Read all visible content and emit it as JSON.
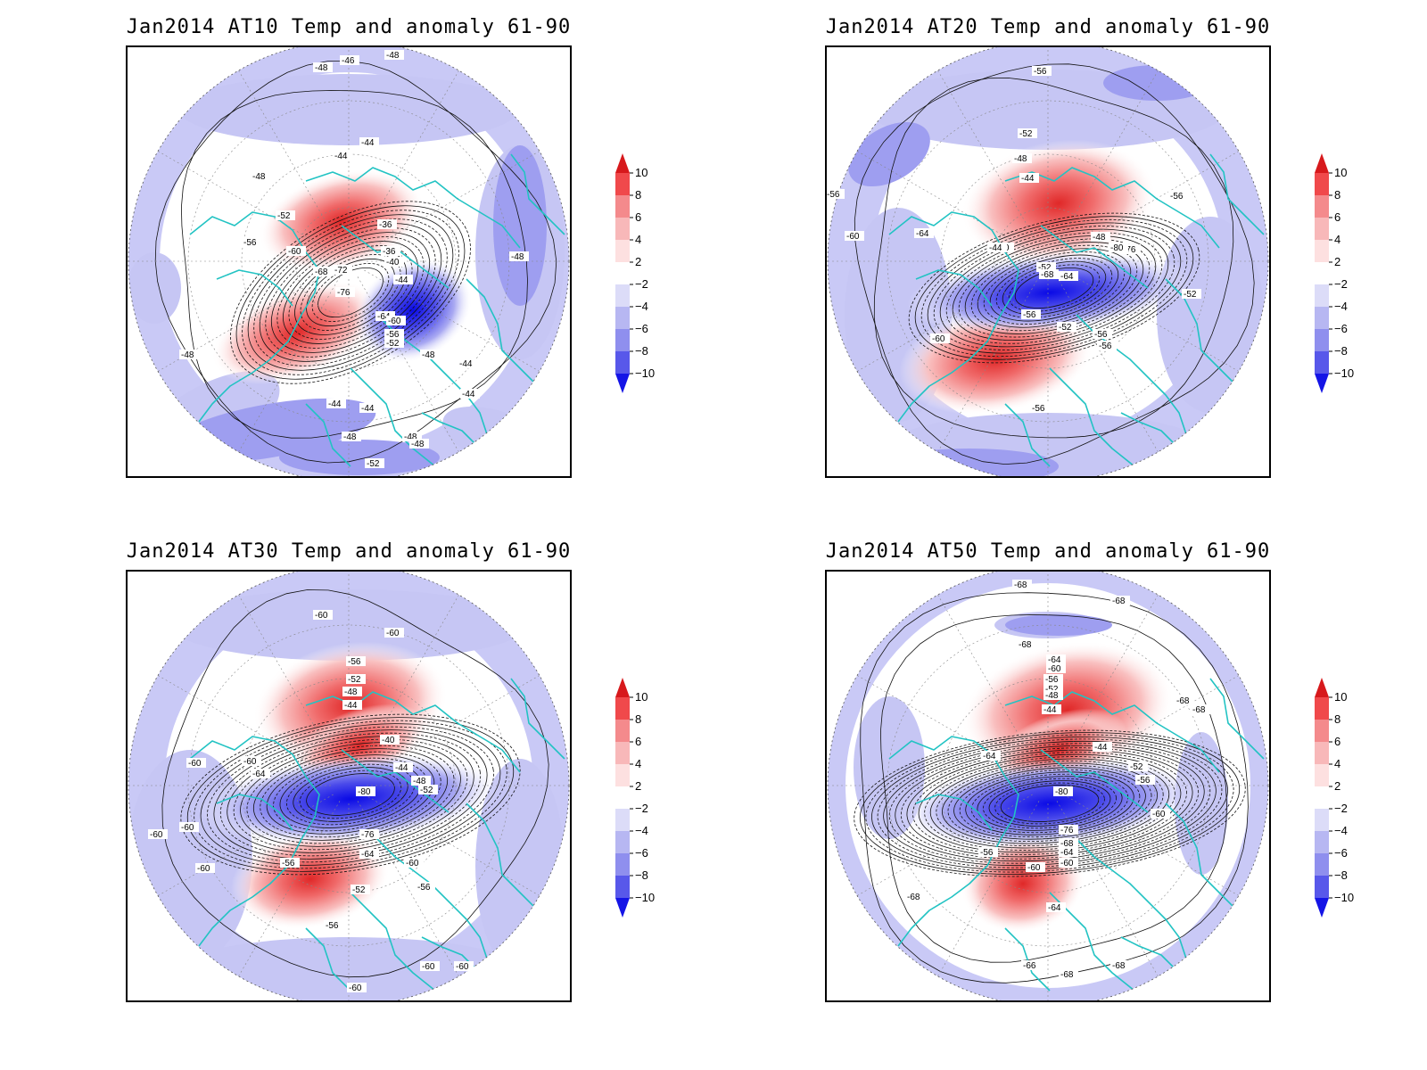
{
  "panels": [
    {
      "id": "at10",
      "title": "Jan2014 AT10 Temp and anomaly 61-90",
      "contour_labels": [
        "-48",
        "-46",
        "-48",
        "-44",
        "-44",
        "-48",
        "-52",
        "-56",
        "-60",
        "-68",
        "-72",
        "-76",
        "-36",
        "-36",
        "-40",
        "-44",
        "-64",
        "-60",
        "-56",
        "-52",
        "-48",
        "-48",
        "-44",
        "-44",
        "-44",
        "-44",
        "-48",
        "-48",
        "-48",
        "-52",
        "-48"
      ]
    },
    {
      "id": "at20",
      "title": "Jan2014 AT20 Temp and anomaly 61-90",
      "contour_labels": [
        "-56",
        "-52",
        "-48",
        "-44",
        "-56",
        "-60",
        "-64",
        "-40",
        "-44",
        "-48",
        "-76",
        "-80",
        "-52",
        "-68",
        "-64",
        "-60",
        "-56",
        "-52",
        "-56",
        "-56",
        "-56",
        "-52",
        "-56"
      ]
    },
    {
      "id": "at30",
      "title": "Jan2014 AT30 Temp and anomaly 61-90",
      "contour_labels": [
        "-60",
        "-60",
        "-56",
        "-52",
        "-48",
        "-44",
        "-40",
        "-44",
        "-48",
        "-52",
        "-60",
        "-60",
        "-64",
        "-80",
        "-76",
        "-64",
        "-60",
        "-56",
        "-56",
        "-52",
        "-60",
        "-60",
        "-60",
        "-56",
        "-60",
        "-60",
        "-60"
      ]
    },
    {
      "id": "at50",
      "title": "Jan2014 AT50 Temp and anomaly 61-90",
      "contour_labels": [
        "-68",
        "-68",
        "-68",
        "-64",
        "-60",
        "-56",
        "-52",
        "-48",
        "-44",
        "-44",
        "-52",
        "-56",
        "-60",
        "-64",
        "-80",
        "-76",
        "-68",
        "-64",
        "-60",
        "-56",
        "-60",
        "-64",
        "-68",
        "-68",
        "-68",
        "-66",
        "-68",
        "-68"
      ]
    }
  ],
  "colorbar": {
    "labels": [
      "10",
      "8",
      "6",
      "4",
      "2",
      "−2",
      "−4",
      "−6",
      "−8",
      "−10"
    ],
    "colors": [
      "#d7191c",
      "#f0494b",
      "#f48a8c",
      "#f8b8b9",
      "#fde0e0",
      "#ffffff",
      "#dcdcf8",
      "#b7b7f2",
      "#8f8fee",
      "#5858ea",
      "#1414e6"
    ]
  },
  "colors": {
    "coastline": "#22c3c3",
    "contour": "#000000",
    "outer_blue": "#c8c8f6",
    "deep_blue": "#1010e8",
    "deep_red": "#e63030"
  }
}
